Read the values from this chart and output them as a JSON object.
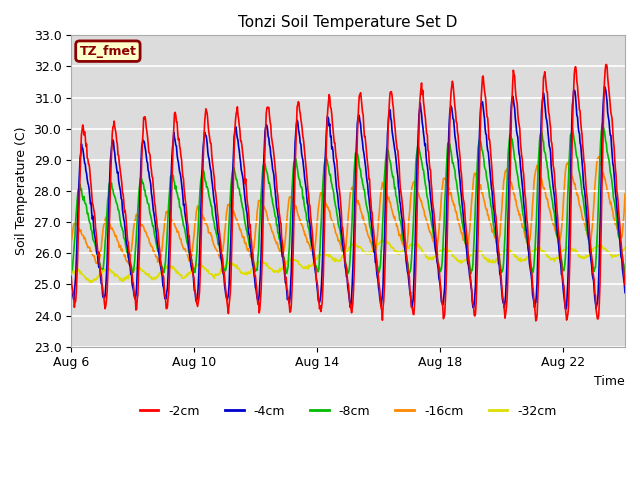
{
  "title": "Tonzi Soil Temperature Set D",
  "xlabel": "Time",
  "ylabel": "Soil Temperature (C)",
  "ylim": [
    23.0,
    33.0
  ],
  "yticks": [
    23.0,
    24.0,
    25.0,
    26.0,
    27.0,
    28.0,
    29.0,
    30.0,
    31.0,
    32.0,
    33.0
  ],
  "xtick_labels": [
    "Aug 6",
    "Aug 10",
    "Aug 14",
    "Aug 18",
    "Aug 22"
  ],
  "xtick_pos": [
    0,
    4,
    8,
    12,
    16
  ],
  "xlim": [
    0,
    18
  ],
  "n_days": 18,
  "bg_color": "#dcdcdc",
  "fig_color": "#ffffff",
  "label_box_text": "TZ_fmet",
  "label_box_facecolor": "#ffffcc",
  "label_box_edgecolor": "#8b0000",
  "lines": [
    {
      "label": "-2cm",
      "color": "#ff0000",
      "lw": 1.2
    },
    {
      "label": "-4cm",
      "color": "#0000cc",
      "lw": 1.2
    },
    {
      "label": "-8cm",
      "color": "#00bb00",
      "lw": 1.2
    },
    {
      "label": "-16cm",
      "color": "#ff8800",
      "lw": 1.2
    },
    {
      "label": "-32cm",
      "color": "#dddd00",
      "lw": 1.2
    }
  ]
}
